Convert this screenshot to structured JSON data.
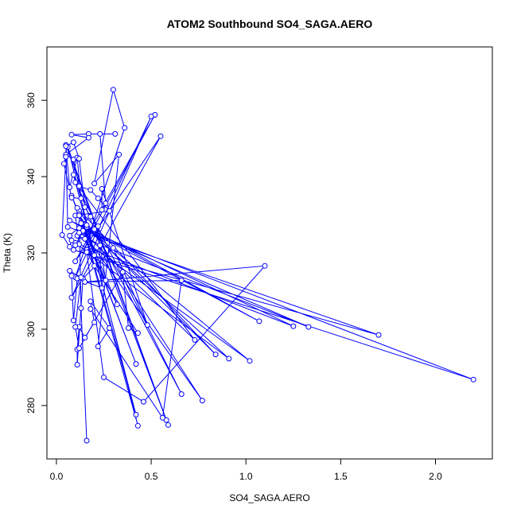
{
  "chart_data": {
    "type": "line",
    "title": "ATOM2 Southbound SO4_SAGA.AERO",
    "xlabel": "SO4_SAGA.AERO",
    "ylabel": "Theta (K)",
    "xlim": [
      -0.05,
      2.3
    ],
    "ylim": [
      266,
      374
    ],
    "x_ticks": [
      0.0,
      0.5,
      1.0,
      1.5,
      2.0
    ],
    "x_tick_labels": [
      "0.0",
      "0.5",
      "1.0",
      "1.5",
      "2.0"
    ],
    "y_ticks": [
      280,
      300,
      320,
      340,
      360
    ],
    "y_tick_labels": [
      "280",
      "300",
      "320",
      "340",
      "360"
    ],
    "grid": false,
    "marker": "open-circle",
    "color": "#0000ff",
    "series": [
      {
        "points": [
          [
            0.16,
            270.8
          ],
          [
            0.13,
            305.5
          ],
          [
            0.12,
            331.0
          ],
          [
            0.42,
            277.6
          ],
          [
            0.09,
            340.5
          ],
          [
            0.59,
            274.9
          ],
          [
            0.05,
            348.3
          ],
          [
            0.06,
            326.8
          ],
          [
            1.7,
            298.5
          ],
          [
            0.09,
            320.8
          ],
          [
            2.2,
            286.8
          ],
          [
            0.12,
            326.5
          ],
          [
            1.33,
            300.6
          ],
          [
            0.11,
            324.5
          ],
          [
            1.02,
            291.7
          ],
          [
            0.13,
            327.8
          ],
          [
            0.91,
            292.3
          ],
          [
            0.1,
            322.6
          ],
          [
            1.25,
            300.8
          ],
          [
            0.07,
            328.5
          ],
          [
            1.07,
            302.1
          ],
          [
            0.16,
            326.8
          ],
          [
            0.84,
            293.4
          ],
          [
            0.11,
            331.8
          ],
          [
            0.77,
            281.3
          ],
          [
            0.14,
            325.5
          ],
          [
            0.73,
            297.2
          ],
          [
            0.1,
            338.5
          ],
          [
            0.66,
            283.0
          ],
          [
            0.2,
            326.2
          ],
          [
            0.58,
            276.2
          ],
          [
            0.06,
            347.8
          ],
          [
            0.43,
            274.7
          ],
          [
            0.12,
            330.2
          ],
          [
            0.42,
            290.9
          ],
          [
            0.08,
            335.0
          ],
          [
            0.32,
            306.5
          ],
          [
            0.15,
            323.7
          ],
          [
            0.52,
            356.2
          ],
          [
            0.1,
            317.8
          ],
          [
            0.55,
            350.6
          ],
          [
            0.08,
            308.3
          ],
          [
            0.5,
            355.8
          ],
          [
            0.1,
            313.6
          ],
          [
            0.36,
            352.8
          ],
          [
            0.3,
            362.8
          ],
          [
            0.2,
            338.2
          ],
          [
            0.33,
            345.8
          ],
          [
            0.22,
            295.5
          ],
          [
            0.28,
            300.3
          ],
          [
            0.18,
            307.3
          ],
          [
            0.2,
            301.8
          ],
          [
            0.15,
            297.8
          ],
          [
            0.12,
            300.6
          ],
          [
            0.11,
            294.7
          ],
          [
            0.11,
            290.7
          ],
          [
            0.14,
            313.3
          ],
          [
            0.3,
            321.3
          ],
          [
            0.48,
            301.1
          ],
          [
            0.24,
            336.8
          ],
          [
            0.24,
            331.3
          ],
          [
            0.26,
            333.0
          ],
          [
            0.23,
            351.2
          ],
          [
            0.31,
            351.2
          ],
          [
            0.17,
            351.2
          ],
          [
            0.08,
            351.0
          ],
          [
            0.17,
            350.2
          ],
          [
            0.05,
            345.8
          ],
          [
            0.09,
            344.5
          ],
          [
            0.12,
            337.5
          ],
          [
            0.18,
            336.5
          ],
          [
            0.22,
            334.3
          ],
          [
            0.28,
            331.0
          ],
          [
            0.1,
            329.8
          ],
          [
            0.12,
            322.3
          ],
          [
            0.08,
            323.3
          ],
          [
            0.07,
            321.6
          ],
          [
            0.03,
            324.7
          ],
          [
            0.05,
            345.2
          ],
          [
            0.04,
            343.4
          ],
          [
            0.08,
            334.5
          ],
          [
            0.13,
            334.3
          ],
          [
            0.11,
            345.0
          ],
          [
            0.07,
            337.2
          ],
          [
            0.05,
            348.0
          ],
          [
            0.09,
            349.0
          ],
          [
            0.12,
            344.7
          ],
          [
            0.15,
            332.0
          ],
          [
            0.18,
            329.5
          ],
          [
            0.07,
            324.5
          ],
          [
            0.1,
            322.0
          ],
          [
            0.14,
            325.8
          ],
          [
            0.16,
            327.3
          ],
          [
            0.12,
            329.8
          ],
          [
            0.2,
            319.4
          ],
          [
            0.26,
            312.8
          ],
          [
            0.23,
            322.0
          ],
          [
            0.12,
            325.3
          ],
          [
            0.22,
            327.0
          ],
          [
            0.24,
            310.8
          ],
          [
            0.11,
            313.3
          ],
          [
            0.09,
            302.3
          ],
          [
            0.08,
            314.0
          ],
          [
            0.07,
            315.3
          ],
          [
            0.13,
            313.6
          ],
          [
            0.1,
            300.6
          ],
          [
            0.12,
            295.0
          ],
          [
            0.35,
            315.0
          ],
          [
            0.38,
            300.3
          ],
          [
            0.43,
            299.0
          ],
          [
            0.2,
            316.6
          ],
          [
            0.16,
            320.2
          ],
          [
            0.25,
            287.4
          ],
          [
            0.46,
            281.0
          ],
          [
            1.1,
            316.6
          ],
          [
            0.15,
            312.4
          ],
          [
            0.66,
            312.8
          ],
          [
            0.56,
            276.8
          ],
          [
            0.18,
            305.3
          ]
        ]
      }
    ]
  }
}
